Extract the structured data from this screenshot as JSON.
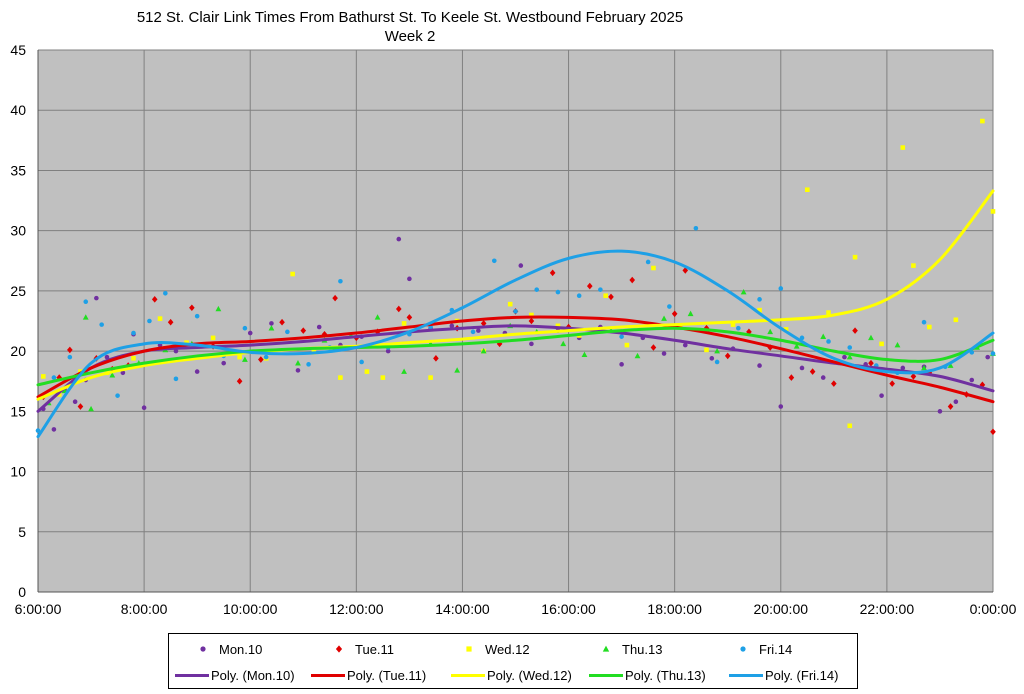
{
  "chart_data": {
    "type": "scatter",
    "title": "512 St. Clair Link Times From Bathurst St. To Keele St. Westbound February 2025",
    "subtitle": "Week 2",
    "xlabel": "",
    "ylabel": "",
    "x_ticks": [
      "6:00:00",
      "8:00:00",
      "10:00:00",
      "12:00:00",
      "14:00:00",
      "16:00:00",
      "18:00:00",
      "20:00:00",
      "22:00:00",
      "0:00:00"
    ],
    "y_ticks": [
      "0",
      "5",
      "10",
      "15",
      "20",
      "25",
      "30",
      "35",
      "40",
      "45"
    ],
    "xlim_hours": [
      6,
      24
    ],
    "ylim": [
      0,
      45
    ],
    "grid": true,
    "legend_position": "bottom",
    "plot_background": "#c0c0c0",
    "series": [
      {
        "name": "Mon.10",
        "marker": "circle",
        "color": "#7030a0",
        "points": [
          [
            6.1,
            15.2
          ],
          [
            6.3,
            13.5
          ],
          [
            6.5,
            16.8
          ],
          [
            6.7,
            15.8
          ],
          [
            6.9,
            17.6
          ],
          [
            7.1,
            24.4
          ],
          [
            7.3,
            19.5
          ],
          [
            7.6,
            18.2
          ],
          [
            7.8,
            21.4
          ],
          [
            8.0,
            15.3
          ],
          [
            8.3,
            20.5
          ],
          [
            8.6,
            20.0
          ],
          [
            9.0,
            18.3
          ],
          [
            9.5,
            19.0
          ],
          [
            10.0,
            21.5
          ],
          [
            10.4,
            22.3
          ],
          [
            10.9,
            18.4
          ],
          [
            11.3,
            22.0
          ],
          [
            11.7,
            20.5
          ],
          [
            12.1,
            21.2
          ],
          [
            12.6,
            20.0
          ],
          [
            12.8,
            29.3
          ],
          [
            13.0,
            26.0
          ],
          [
            13.4,
            21.9
          ],
          [
            13.8,
            22.1
          ],
          [
            14.3,
            21.7
          ],
          [
            14.8,
            21.5
          ],
          [
            15.1,
            27.1
          ],
          [
            15.3,
            20.6
          ],
          [
            15.8,
            21.7
          ],
          [
            16.2,
            21.1
          ],
          [
            16.6,
            22.0
          ],
          [
            17.0,
            18.9
          ],
          [
            17.4,
            21.1
          ],
          [
            17.8,
            19.8
          ],
          [
            18.2,
            20.5
          ],
          [
            18.7,
            19.4
          ],
          [
            19.1,
            20.2
          ],
          [
            19.6,
            18.8
          ],
          [
            20.0,
            15.4
          ],
          [
            20.4,
            18.6
          ],
          [
            20.8,
            17.8
          ],
          [
            21.2,
            19.5
          ],
          [
            21.6,
            18.9
          ],
          [
            21.9,
            16.3
          ],
          [
            22.3,
            18.6
          ],
          [
            22.7,
            18.7
          ],
          [
            23.0,
            15.0
          ],
          [
            23.3,
            15.8
          ],
          [
            23.6,
            17.6
          ],
          [
            23.9,
            19.5
          ]
        ]
      },
      {
        "name": "Tue.11",
        "marker": "diamond",
        "color": "#e00000",
        "points": [
          [
            6.1,
            16.2
          ],
          [
            6.4,
            17.8
          ],
          [
            6.6,
            20.1
          ],
          [
            6.8,
            15.4
          ],
          [
            7.1,
            19.4
          ],
          [
            7.4,
            18.5
          ],
          [
            7.7,
            18.8
          ],
          [
            8.2,
            24.3
          ],
          [
            8.5,
            22.4
          ],
          [
            8.9,
            23.6
          ],
          [
            9.3,
            20.4
          ],
          [
            9.8,
            17.5
          ],
          [
            10.2,
            19.3
          ],
          [
            10.6,
            22.4
          ],
          [
            11.0,
            21.7
          ],
          [
            11.4,
            21.4
          ],
          [
            11.6,
            24.4
          ],
          [
            12.0,
            21.1
          ],
          [
            12.4,
            21.6
          ],
          [
            12.8,
            23.5
          ],
          [
            13.0,
            22.8
          ],
          [
            13.5,
            19.4
          ],
          [
            13.9,
            21.9
          ],
          [
            14.4,
            22.3
          ],
          [
            14.7,
            20.6
          ],
          [
            15.0,
            23.3
          ],
          [
            15.3,
            22.5
          ],
          [
            15.7,
            26.5
          ],
          [
            16.0,
            22.0
          ],
          [
            16.4,
            25.4
          ],
          [
            16.8,
            24.5
          ],
          [
            17.2,
            25.9
          ],
          [
            17.6,
            20.3
          ],
          [
            18.0,
            23.1
          ],
          [
            18.2,
            26.7
          ],
          [
            18.6,
            21.9
          ],
          [
            19.0,
            19.6
          ],
          [
            19.4,
            21.6
          ],
          [
            19.8,
            20.3
          ],
          [
            20.2,
            17.8
          ],
          [
            20.6,
            18.3
          ],
          [
            21.0,
            17.3
          ],
          [
            21.4,
            21.7
          ],
          [
            21.7,
            19.0
          ],
          [
            22.1,
            17.3
          ],
          [
            22.5,
            17.9
          ],
          [
            22.8,
            18.2
          ],
          [
            23.2,
            15.4
          ],
          [
            23.5,
            16.4
          ],
          [
            23.8,
            17.2
          ],
          [
            24.0,
            13.3
          ]
        ]
      },
      {
        "name": "Wed.12",
        "marker": "square",
        "color": "#ffff00",
        "points": [
          [
            6.1,
            17.9
          ],
          [
            6.4,
            16.4
          ],
          [
            6.8,
            18.3
          ],
          [
            7.3,
            18.2
          ],
          [
            7.8,
            19.4
          ],
          [
            8.3,
            22.7
          ],
          [
            8.8,
            20.7
          ],
          [
            9.3,
            21.1
          ],
          [
            9.8,
            19.5
          ],
          [
            10.3,
            19.4
          ],
          [
            10.8,
            26.4
          ],
          [
            11.2,
            19.9
          ],
          [
            11.7,
            17.8
          ],
          [
            12.2,
            18.3
          ],
          [
            12.5,
            17.8
          ],
          [
            12.9,
            22.3
          ],
          [
            13.4,
            17.8
          ],
          [
            13.9,
            22.5
          ],
          [
            14.4,
            20.0
          ],
          [
            14.9,
            23.9
          ],
          [
            15.3,
            23.0
          ],
          [
            15.8,
            22.1
          ],
          [
            16.2,
            21.3
          ],
          [
            16.7,
            24.6
          ],
          [
            17.1,
            20.5
          ],
          [
            17.6,
            26.9
          ],
          [
            18.1,
            22.1
          ],
          [
            18.6,
            20.1
          ],
          [
            19.1,
            22.2
          ],
          [
            19.6,
            23.4
          ],
          [
            20.1,
            21.8
          ],
          [
            20.5,
            33.4
          ],
          [
            20.9,
            23.2
          ],
          [
            21.3,
            13.8
          ],
          [
            21.4,
            27.8
          ],
          [
            21.9,
            20.6
          ],
          [
            22.3,
            36.9
          ],
          [
            22.5,
            27.1
          ],
          [
            22.8,
            22.0
          ],
          [
            23.3,
            22.6
          ],
          [
            23.8,
            39.1
          ],
          [
            24.0,
            31.6
          ]
        ]
      },
      {
        "name": "Thu.13",
        "marker": "triangle",
        "color": "#22dd22",
        "points": [
          [
            6.2,
            15.7
          ],
          [
            6.5,
            16.7
          ],
          [
            6.9,
            22.8
          ],
          [
            7.0,
            15.2
          ],
          [
            7.4,
            18.0
          ],
          [
            7.9,
            19.0
          ],
          [
            8.4,
            20.1
          ],
          [
            8.9,
            20.6
          ],
          [
            9.4,
            23.5
          ],
          [
            9.9,
            19.3
          ],
          [
            10.4,
            21.9
          ],
          [
            10.9,
            19.0
          ],
          [
            11.4,
            20.9
          ],
          [
            11.9,
            21.3
          ],
          [
            12.4,
            22.8
          ],
          [
            12.9,
            18.3
          ],
          [
            13.4,
            20.6
          ],
          [
            13.9,
            18.4
          ],
          [
            14.4,
            20.0
          ],
          [
            14.9,
            22.1
          ],
          [
            15.4,
            21.6
          ],
          [
            15.9,
            20.6
          ],
          [
            16.3,
            19.7
          ],
          [
            16.8,
            21.7
          ],
          [
            17.3,
            19.6
          ],
          [
            17.8,
            22.7
          ],
          [
            18.3,
            23.1
          ],
          [
            18.8,
            20.0
          ],
          [
            19.3,
            24.9
          ],
          [
            19.8,
            21.6
          ],
          [
            20.3,
            20.4
          ],
          [
            20.8,
            21.2
          ],
          [
            21.3,
            19.5
          ],
          [
            21.7,
            21.1
          ],
          [
            22.2,
            20.5
          ],
          [
            22.7,
            18.6
          ],
          [
            23.2,
            18.8
          ],
          [
            23.7,
            20.3
          ],
          [
            24.0,
            19.8
          ]
        ]
      },
      {
        "name": "Fri.14",
        "marker": "circle",
        "color": "#1ea0e6",
        "points": [
          [
            6.0,
            13.4
          ],
          [
            6.3,
            17.8
          ],
          [
            6.6,
            19.5
          ],
          [
            6.9,
            24.1
          ],
          [
            7.2,
            22.2
          ],
          [
            7.5,
            16.3
          ],
          [
            7.8,
            21.5
          ],
          [
            8.1,
            22.5
          ],
          [
            8.4,
            24.8
          ],
          [
            8.6,
            17.7
          ],
          [
            9.0,
            22.9
          ],
          [
            9.5,
            19.6
          ],
          [
            9.9,
            21.9
          ],
          [
            10.3,
            19.5
          ],
          [
            10.7,
            21.6
          ],
          [
            11.1,
            18.9
          ],
          [
            11.5,
            20.3
          ],
          [
            11.7,
            25.8
          ],
          [
            12.1,
            19.1
          ],
          [
            12.6,
            20.3
          ],
          [
            13.0,
            21.4
          ],
          [
            13.4,
            22.0
          ],
          [
            13.8,
            23.4
          ],
          [
            14.2,
            21.6
          ],
          [
            14.6,
            27.5
          ],
          [
            15.0,
            23.3
          ],
          [
            15.4,
            25.1
          ],
          [
            15.8,
            24.9
          ],
          [
            16.2,
            24.6
          ],
          [
            16.6,
            25.1
          ],
          [
            17.0,
            21.2
          ],
          [
            17.5,
            27.4
          ],
          [
            17.9,
            23.7
          ],
          [
            18.4,
            30.2
          ],
          [
            18.8,
            19.1
          ],
          [
            19.2,
            21.9
          ],
          [
            19.6,
            24.3
          ],
          [
            20.0,
            25.2
          ],
          [
            20.4,
            21.1
          ],
          [
            20.9,
            20.8
          ],
          [
            21.3,
            20.3
          ],
          [
            21.8,
            18.8
          ],
          [
            22.2,
            18.2
          ],
          [
            22.7,
            22.4
          ],
          [
            23.1,
            18.7
          ],
          [
            23.6,
            19.9
          ],
          [
            24.0,
            19.8
          ]
        ]
      }
    ],
    "trendlines": [
      {
        "name": "Poly. (Mon.10)",
        "color": "#7030a0",
        "x": [
          6,
          7,
          8,
          9,
          10,
          11,
          12,
          13,
          14,
          15,
          16,
          17,
          18,
          19,
          20,
          21,
          22,
          23,
          24
        ],
        "y": [
          15.0,
          18.6,
          20.0,
          20.3,
          20.5,
          20.8,
          21.2,
          21.6,
          21.9,
          22.1,
          21.9,
          21.5,
          20.9,
          20.2,
          19.6,
          19.0,
          18.5,
          17.9,
          16.7
        ]
      },
      {
        "name": "Poly. (Tue.11)",
        "color": "#e00000",
        "x": [
          6,
          7,
          8,
          9,
          10,
          11,
          12,
          13,
          14,
          15,
          16,
          17,
          18,
          19,
          20,
          21,
          22,
          23,
          24
        ],
        "y": [
          16.2,
          18.6,
          20.0,
          20.6,
          20.8,
          21.1,
          21.5,
          22.0,
          22.5,
          22.8,
          22.8,
          22.6,
          22.0,
          21.2,
          20.2,
          19.1,
          18.0,
          17.0,
          15.8
        ]
      },
      {
        "name": "Poly. (Wed.12)",
        "color": "#ffff00",
        "x": [
          6,
          7,
          8,
          9,
          10,
          11,
          12,
          13,
          14,
          15,
          16,
          17,
          18,
          19,
          20,
          21,
          22,
          23,
          24
        ],
        "y": [
          16.0,
          17.8,
          18.8,
          19.4,
          19.9,
          20.2,
          20.4,
          20.7,
          21.0,
          21.4,
          21.7,
          22.0,
          22.2,
          22.4,
          22.6,
          23.0,
          24.3,
          27.6,
          33.3
        ]
      },
      {
        "name": "Poly. (Thu.13)",
        "color": "#22dd22",
        "x": [
          6,
          7,
          8,
          9,
          10,
          11,
          12,
          13,
          14,
          15,
          16,
          17,
          18,
          19,
          20,
          21,
          22,
          23,
          24
        ],
        "y": [
          17.2,
          18.2,
          19.0,
          19.6,
          20.0,
          20.2,
          20.3,
          20.4,
          20.6,
          20.9,
          21.3,
          21.7,
          21.9,
          21.6,
          20.9,
          20.0,
          19.3,
          19.3,
          20.9
        ]
      },
      {
        "name": "Poly. (Fri.14)",
        "color": "#1ea0e6",
        "x": [
          6,
          7,
          8,
          9,
          10,
          11,
          12,
          13,
          14,
          15,
          16,
          17,
          18,
          19,
          20,
          21,
          22,
          23,
          24
        ],
        "y": [
          12.9,
          19.0,
          20.6,
          20.5,
          19.9,
          19.8,
          20.3,
          21.6,
          23.6,
          25.9,
          27.7,
          28.3,
          27.4,
          25.0,
          21.9,
          19.4,
          18.3,
          18.6,
          21.5
        ]
      }
    ]
  },
  "legend": {
    "row1": [
      "Mon.10",
      "Tue.11",
      "Wed.12",
      "Thu.13",
      "Fri.14"
    ],
    "row2": [
      "Poly. (Mon.10)",
      "Poly. (Tue.11)",
      "Poly. (Wed.12)",
      "Poly. (Thu.13)",
      "Poly. (Fri.14)"
    ]
  }
}
